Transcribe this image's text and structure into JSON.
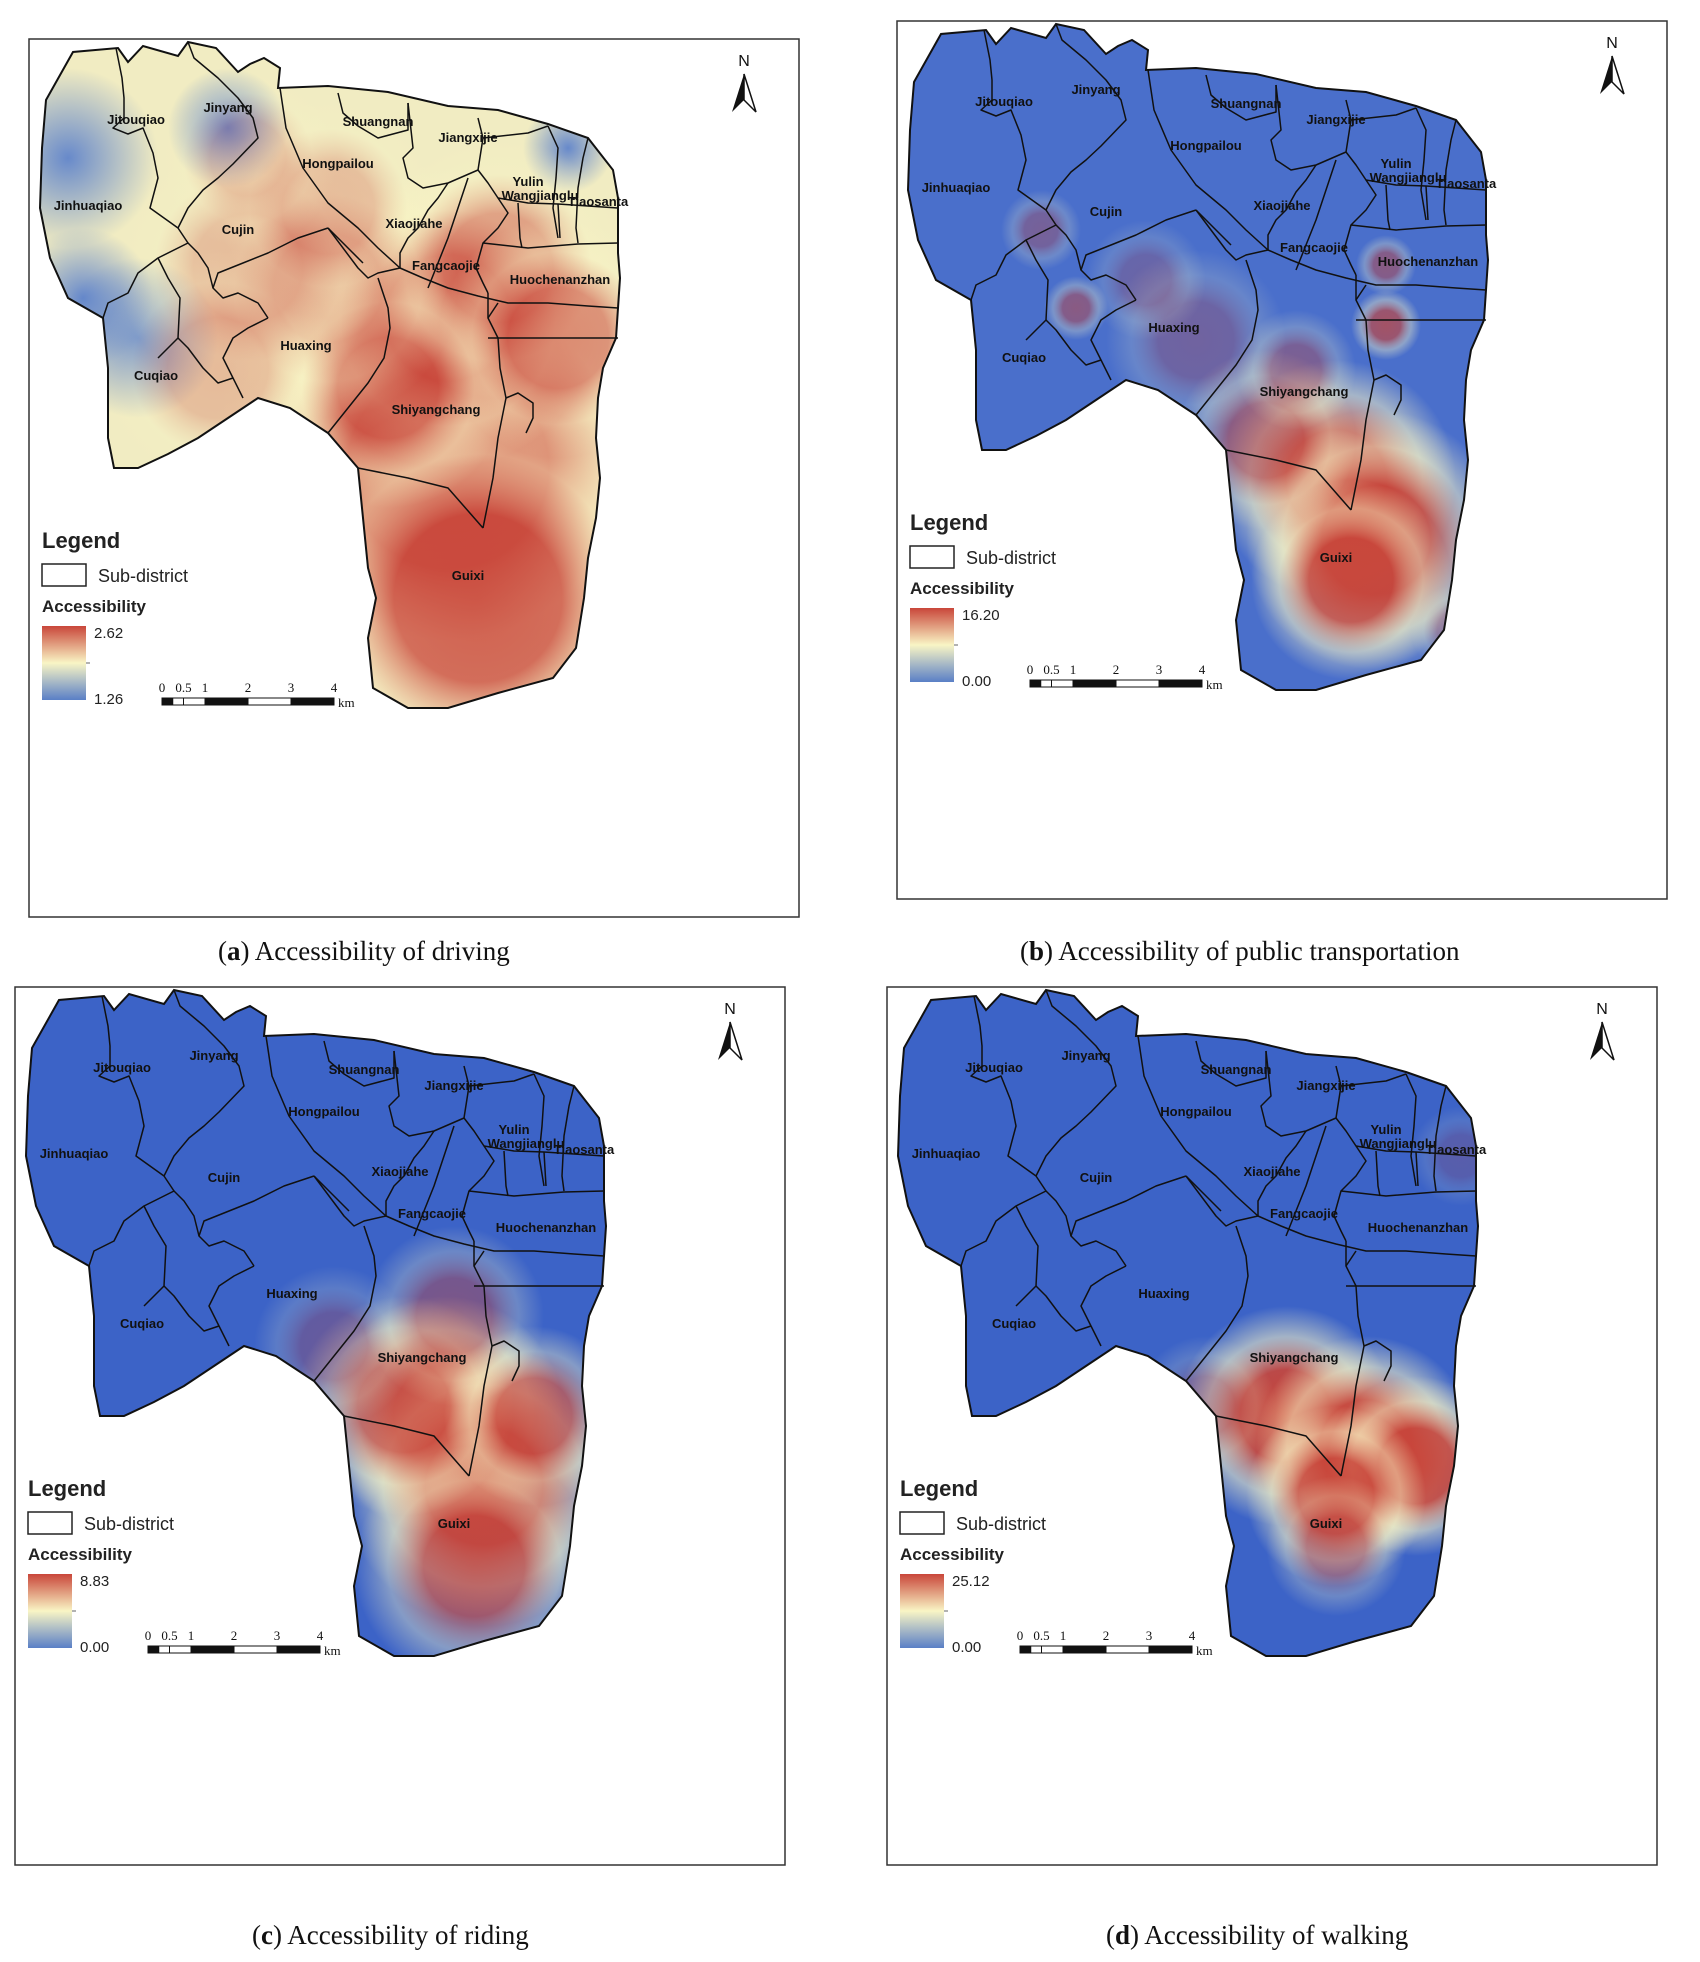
{
  "legend": {
    "title": "Legend",
    "subdistrict_label": "Sub-district",
    "accessibility_label": "Accessibility"
  },
  "north_label": "N",
  "scale_bar": {
    "ticks": [
      "0",
      "0.5",
      "1",
      "2",
      "3",
      "4"
    ],
    "unit": "km"
  },
  "district_names": [
    "Jinyang",
    "Jitouqiao",
    "Shuangnan",
    "Jiangxijie",
    "Hongpailou",
    "Yulin",
    "Wangjianglu",
    "Tiaosanta",
    "Jinhuaqiao",
    "Cujin",
    "Xiaojiahe",
    "Fangcaojie",
    "Huochenanzhan",
    "Huaxing",
    "Cuqiao",
    "Shiyangchang",
    "Guixi"
  ],
  "colors": {
    "high": "#c9463a",
    "mid": "#f9f5c5",
    "low": "#3c63c7",
    "outline": "#111111"
  },
  "panels": [
    {
      "id": "a",
      "caption_letter": "a",
      "caption_text": "Accessibility of driving",
      "max": "2.62",
      "min": "1.26"
    },
    {
      "id": "b",
      "caption_letter": "b",
      "caption_text": "Accessibility of public transportation",
      "max": "16.20",
      "min": "0.00"
    },
    {
      "id": "c",
      "caption_letter": "c",
      "caption_text": "Accessibility of riding",
      "max": "8.83",
      "min": "0.00"
    },
    {
      "id": "d",
      "caption_letter": "d",
      "caption_text": "Accessibility of walking",
      "max": "25.12",
      "min": "0.00"
    }
  ]
}
